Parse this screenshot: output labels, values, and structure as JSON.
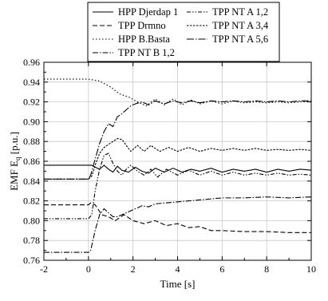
{
  "chart_data": {
    "type": "line",
    "xlabel": "Time [s]",
    "ylabel": "EMF E",
    "ylabel_subscript": "q",
    "ylabel_unit": "[p.u.]",
    "xlim": [
      -2,
      10
    ],
    "ylim": [
      0.76,
      0.96
    ],
    "x_ticks": [
      -2,
      0,
      2,
      4,
      6,
      8,
      10
    ],
    "y_ticks": [
      0.76,
      0.78,
      0.8,
      0.82,
      0.84,
      0.86,
      0.88,
      0.9,
      0.92,
      0.94,
      0.96
    ],
    "x_tick_labels": [
      "-2",
      "0",
      "2",
      "4",
      "6",
      "8",
      "10"
    ],
    "y_tick_labels": [
      "0.76",
      "0.78",
      "0.80",
      "0.82",
      "0.84",
      "0.86",
      "0.88",
      "0.90",
      "0.92",
      "0.94",
      "0.96"
    ],
    "grid": true,
    "legend_position": "top",
    "series": [
      {
        "name": "HPP Djerdap 1",
        "dash": "solid",
        "x": [
          -2,
          0,
          0.15,
          0.3,
          0.5,
          0.7,
          0.9,
          1.1,
          1.3,
          1.5,
          1.8,
          2.1,
          2.4,
          2.7,
          3.0,
          3.4,
          3.8,
          4.2,
          4.6,
          5.0,
          5.5,
          6.0,
          6.5,
          7.0,
          7.5,
          8.0,
          8.5,
          9.0,
          9.5,
          10
        ],
        "y": [
          0.856,
          0.856,
          0.856,
          0.854,
          0.852,
          0.856,
          0.852,
          0.849,
          0.855,
          0.851,
          0.849,
          0.854,
          0.85,
          0.848,
          0.853,
          0.849,
          0.853,
          0.849,
          0.852,
          0.85,
          0.853,
          0.849,
          0.852,
          0.85,
          0.852,
          0.849,
          0.852,
          0.85,
          0.852,
          0.851
        ]
      },
      {
        "name": "TPP Drmno",
        "dash": "6,3",
        "x": [
          -2,
          0,
          0.1,
          0.3,
          0.6,
          0.9,
          1.2,
          1.6,
          2.0,
          2.5,
          3.0,
          3.5,
          4.0,
          4.5,
          5.0,
          5.5,
          6.0,
          7.0,
          8.0,
          9.0,
          10
        ],
        "y": [
          0.816,
          0.816,
          0.818,
          0.816,
          0.806,
          0.804,
          0.8,
          0.806,
          0.8,
          0.797,
          0.8,
          0.795,
          0.797,
          0.793,
          0.794,
          0.79,
          0.79,
          0.789,
          0.789,
          0.788,
          0.788
        ]
      },
      {
        "name": "HPP B.Basta",
        "dash": "1.5,2.5",
        "x": [
          -2,
          0,
          0.5,
          1.0,
          1.4,
          1.8,
          2.2,
          2.6,
          3.0,
          3.4,
          3.8,
          4.2,
          4.6,
          5.0,
          5.5,
          6.0,
          6.5,
          7.0,
          7.5,
          8.0,
          8.5,
          9.0,
          9.5,
          10
        ],
        "y": [
          0.943,
          0.943,
          0.941,
          0.935,
          0.928,
          0.925,
          0.92,
          0.916,
          0.923,
          0.917,
          0.923,
          0.917,
          0.922,
          0.918,
          0.921,
          0.918,
          0.921,
          0.919,
          0.92,
          0.919,
          0.92,
          0.919,
          0.92,
          0.92
        ]
      },
      {
        "name": "TPP NT B 1,2",
        "dash": "7,2,1.5,2",
        "x": [
          -2,
          0,
          0.1,
          0.3,
          0.5,
          0.7,
          0.9,
          1.1,
          1.3,
          1.5,
          1.7,
          1.9,
          2.1,
          2.4,
          2.7,
          3.0,
          3.5,
          4.0,
          4.5,
          5.0,
          5.5,
          6.0,
          7.0,
          8.0,
          9.0,
          10
        ],
        "y": [
          0.768,
          0.768,
          0.77,
          0.79,
          0.806,
          0.812,
          0.808,
          0.804,
          0.804,
          0.806,
          0.808,
          0.81,
          0.812,
          0.815,
          0.814,
          0.817,
          0.818,
          0.819,
          0.82,
          0.821,
          0.822,
          0.823,
          0.823,
          0.824,
          0.823,
          0.824
        ]
      },
      {
        "name": "TPP NT A 1,2",
        "dash": "5,2,1.5,2,1.5,2",
        "x": [
          -2,
          0,
          0.15,
          0.3,
          0.5,
          0.7,
          0.9,
          1.1,
          1.3,
          1.5,
          1.7,
          1.9,
          2.2,
          2.5,
          2.8,
          3.1,
          3.5,
          4.0,
          4.5,
          5.0,
          5.5,
          6.0,
          6.5,
          7.0,
          7.5,
          8.0,
          8.5,
          9.0,
          9.5,
          10
        ],
        "y": [
          0.802,
          0.802,
          0.806,
          0.83,
          0.852,
          0.866,
          0.868,
          0.858,
          0.85,
          0.846,
          0.852,
          0.856,
          0.85,
          0.846,
          0.852,
          0.844,
          0.852,
          0.846,
          0.851,
          0.846,
          0.85,
          0.846,
          0.849,
          0.846,
          0.848,
          0.846,
          0.848,
          0.846,
          0.847,
          0.846
        ]
      },
      {
        "name": "TPP NT A 3,4",
        "dash": "2.5,1.5",
        "x": [
          -2,
          0,
          0.15,
          0.3,
          0.5,
          0.7,
          0.9,
          1.1,
          1.3,
          1.5,
          1.7,
          1.9,
          2.2,
          2.5,
          2.8,
          3.2,
          3.6,
          4.0,
          4.5,
          5.0,
          5.5,
          6.0,
          6.5,
          7.0,
          7.5,
          8.0,
          8.5,
          9.0,
          9.5,
          10
        ],
        "y": [
          0.842,
          0.842,
          0.845,
          0.856,
          0.868,
          0.874,
          0.877,
          0.88,
          0.883,
          0.882,
          0.876,
          0.87,
          0.876,
          0.87,
          0.876,
          0.87,
          0.874,
          0.87,
          0.874,
          0.87,
          0.873,
          0.871,
          0.873,
          0.871,
          0.873,
          0.871,
          0.872,
          0.871,
          0.872,
          0.871
        ]
      },
      {
        "name": "TPP NT A 5,6",
        "dash": "9,2,1.5,2",
        "x": [
          -2,
          0,
          0.1,
          0.3,
          0.5,
          0.7,
          0.9,
          1.1,
          1.3,
          1.5,
          1.7,
          1.9,
          2.1,
          2.4,
          2.7,
          3.0,
          3.4,
          3.8,
          4.2,
          4.6,
          5.0,
          5.5,
          6.0,
          6.5,
          7.0,
          7.5,
          8.0,
          8.5,
          9.0,
          9.5,
          10
        ],
        "y": [
          0.842,
          0.842,
          0.846,
          0.862,
          0.878,
          0.89,
          0.898,
          0.895,
          0.905,
          0.908,
          0.912,
          0.916,
          0.918,
          0.92,
          0.917,
          0.921,
          0.918,
          0.921,
          0.919,
          0.921,
          0.919,
          0.921,
          0.92,
          0.921,
          0.92,
          0.921,
          0.92,
          0.921,
          0.92,
          0.921,
          0.921
        ]
      }
    ]
  }
}
